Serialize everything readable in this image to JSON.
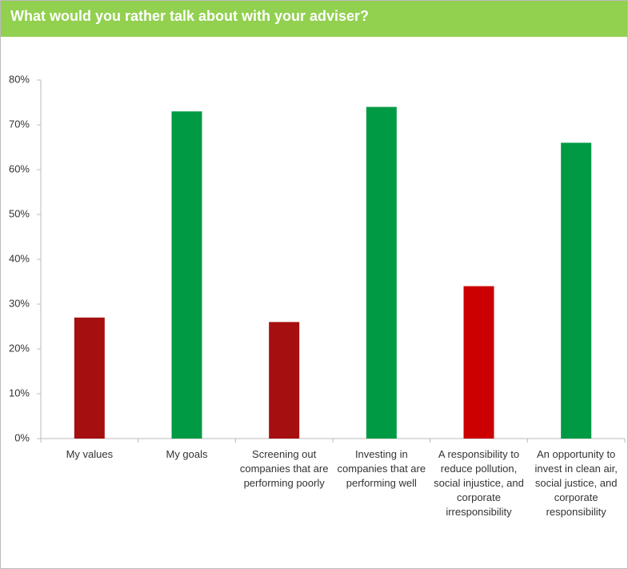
{
  "chart_data": {
    "type": "bar",
    "title": "What would you rather talk about with your adviser?",
    "categories": [
      "My values",
      "My goals",
      "Screening out companies that are performing poorly",
      "Investing in companies that are performing well",
      "A responsibility to reduce pollution, social injustice, and corporate irresponsibility",
      "An opportunity to invest in clean air, social justice, and corporate responsibility"
    ],
    "values": [
      27,
      73,
      26,
      74,
      34,
      66
    ],
    "colors": [
      "#a50f0f",
      "#009a44",
      "#a50f0f",
      "#009a44",
      "#cc0000",
      "#009a44"
    ],
    "ylim": [
      0,
      80
    ],
    "yticks": [
      {
        "value": 0,
        "label": "0%"
      },
      {
        "value": 10,
        "label": "10%"
      },
      {
        "value": 20,
        "label": "20%"
      },
      {
        "value": 30,
        "label": "30%"
      },
      {
        "value": 40,
        "label": "40%"
      },
      {
        "value": 50,
        "label": "50%"
      },
      {
        "value": 60,
        "label": "60%"
      },
      {
        "value": 70,
        "label": "70%"
      },
      {
        "value": 80,
        "label": "80%"
      }
    ],
    "grid": false
  }
}
